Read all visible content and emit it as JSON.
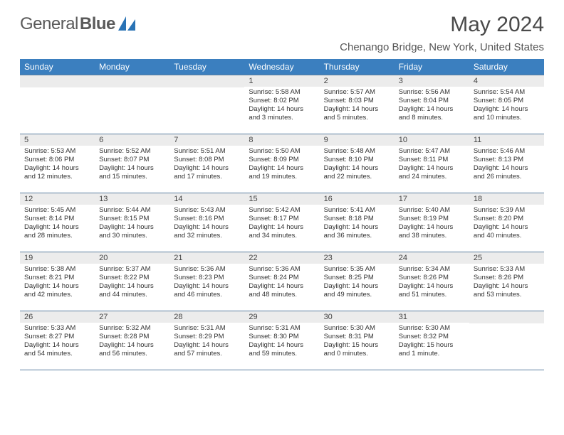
{
  "brand": {
    "name1": "General",
    "name2": "Blue"
  },
  "title": "May 2024",
  "location": "Chenango Bridge, New York, United States",
  "colors": {
    "header_bg": "#3b7fbf",
    "header_fg": "#ffffff",
    "daynum_bg": "#ececec",
    "border": "#5b7fa0",
    "text": "#333333",
    "logo_accent": "#2a73b5"
  },
  "day_names": [
    "Sunday",
    "Monday",
    "Tuesday",
    "Wednesday",
    "Thursday",
    "Friday",
    "Saturday"
  ],
  "weeks": [
    [
      null,
      null,
      null,
      {
        "n": "1",
        "sr": "5:58 AM",
        "ss": "8:02 PM",
        "dl": "14 hours and 3 minutes."
      },
      {
        "n": "2",
        "sr": "5:57 AM",
        "ss": "8:03 PM",
        "dl": "14 hours and 5 minutes."
      },
      {
        "n": "3",
        "sr": "5:56 AM",
        "ss": "8:04 PM",
        "dl": "14 hours and 8 minutes."
      },
      {
        "n": "4",
        "sr": "5:54 AM",
        "ss": "8:05 PM",
        "dl": "14 hours and 10 minutes."
      }
    ],
    [
      {
        "n": "5",
        "sr": "5:53 AM",
        "ss": "8:06 PM",
        "dl": "14 hours and 12 minutes."
      },
      {
        "n": "6",
        "sr": "5:52 AM",
        "ss": "8:07 PM",
        "dl": "14 hours and 15 minutes."
      },
      {
        "n": "7",
        "sr": "5:51 AM",
        "ss": "8:08 PM",
        "dl": "14 hours and 17 minutes."
      },
      {
        "n": "8",
        "sr": "5:50 AM",
        "ss": "8:09 PM",
        "dl": "14 hours and 19 minutes."
      },
      {
        "n": "9",
        "sr": "5:48 AM",
        "ss": "8:10 PM",
        "dl": "14 hours and 22 minutes."
      },
      {
        "n": "10",
        "sr": "5:47 AM",
        "ss": "8:11 PM",
        "dl": "14 hours and 24 minutes."
      },
      {
        "n": "11",
        "sr": "5:46 AM",
        "ss": "8:13 PM",
        "dl": "14 hours and 26 minutes."
      }
    ],
    [
      {
        "n": "12",
        "sr": "5:45 AM",
        "ss": "8:14 PM",
        "dl": "14 hours and 28 minutes."
      },
      {
        "n": "13",
        "sr": "5:44 AM",
        "ss": "8:15 PM",
        "dl": "14 hours and 30 minutes."
      },
      {
        "n": "14",
        "sr": "5:43 AM",
        "ss": "8:16 PM",
        "dl": "14 hours and 32 minutes."
      },
      {
        "n": "15",
        "sr": "5:42 AM",
        "ss": "8:17 PM",
        "dl": "14 hours and 34 minutes."
      },
      {
        "n": "16",
        "sr": "5:41 AM",
        "ss": "8:18 PM",
        "dl": "14 hours and 36 minutes."
      },
      {
        "n": "17",
        "sr": "5:40 AM",
        "ss": "8:19 PM",
        "dl": "14 hours and 38 minutes."
      },
      {
        "n": "18",
        "sr": "5:39 AM",
        "ss": "8:20 PM",
        "dl": "14 hours and 40 minutes."
      }
    ],
    [
      {
        "n": "19",
        "sr": "5:38 AM",
        "ss": "8:21 PM",
        "dl": "14 hours and 42 minutes."
      },
      {
        "n": "20",
        "sr": "5:37 AM",
        "ss": "8:22 PM",
        "dl": "14 hours and 44 minutes."
      },
      {
        "n": "21",
        "sr": "5:36 AM",
        "ss": "8:23 PM",
        "dl": "14 hours and 46 minutes."
      },
      {
        "n": "22",
        "sr": "5:36 AM",
        "ss": "8:24 PM",
        "dl": "14 hours and 48 minutes."
      },
      {
        "n": "23",
        "sr": "5:35 AM",
        "ss": "8:25 PM",
        "dl": "14 hours and 49 minutes."
      },
      {
        "n": "24",
        "sr": "5:34 AM",
        "ss": "8:26 PM",
        "dl": "14 hours and 51 minutes."
      },
      {
        "n": "25",
        "sr": "5:33 AM",
        "ss": "8:26 PM",
        "dl": "14 hours and 53 minutes."
      }
    ],
    [
      {
        "n": "26",
        "sr": "5:33 AM",
        "ss": "8:27 PM",
        "dl": "14 hours and 54 minutes."
      },
      {
        "n": "27",
        "sr": "5:32 AM",
        "ss": "8:28 PM",
        "dl": "14 hours and 56 minutes."
      },
      {
        "n": "28",
        "sr": "5:31 AM",
        "ss": "8:29 PM",
        "dl": "14 hours and 57 minutes."
      },
      {
        "n": "29",
        "sr": "5:31 AM",
        "ss": "8:30 PM",
        "dl": "14 hours and 59 minutes."
      },
      {
        "n": "30",
        "sr": "5:30 AM",
        "ss": "8:31 PM",
        "dl": "15 hours and 0 minutes."
      },
      {
        "n": "31",
        "sr": "5:30 AM",
        "ss": "8:32 PM",
        "dl": "15 hours and 1 minute."
      },
      null
    ]
  ],
  "labels": {
    "sunrise": "Sunrise: ",
    "sunset": "Sunset: ",
    "daylight": "Daylight: "
  }
}
